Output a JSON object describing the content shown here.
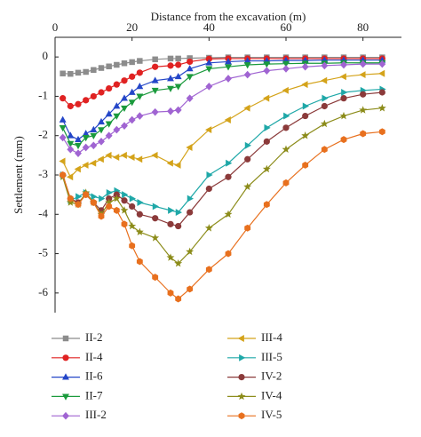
{
  "chart_data": {
    "type": "line",
    "x_label": "Distance from the excavation (m)",
    "y_label": "Settlement (mm)",
    "x": [
      2,
      4,
      6,
      8,
      10,
      12,
      14,
      16,
      18,
      20,
      22,
      26,
      30,
      32,
      35,
      40,
      45,
      50,
      55,
      60,
      65,
      70,
      75,
      80,
      85
    ],
    "xlim": [
      0,
      90
    ],
    "xticks": [
      0,
      20,
      40,
      60,
      80
    ],
    "ylim": [
      -6.5,
      0.5
    ],
    "yticks": [
      0,
      -1,
      -2,
      -3,
      -4,
      -5,
      -6
    ],
    "series": [
      {
        "name": "II-2",
        "color": "#8c8c8c",
        "marker": "square",
        "values": [
          -0.42,
          -0.43,
          -0.4,
          -0.38,
          -0.33,
          -0.28,
          -0.24,
          -0.2,
          -0.16,
          -0.13,
          -0.1,
          -0.06,
          -0.04,
          -0.04,
          -0.03,
          -0.02,
          -0.01,
          -0.01,
          -0.01,
          -0.01,
          -0.01,
          -0.01,
          -0.01,
          -0.01,
          -0.01
        ]
      },
      {
        "name": "II-4",
        "color": "#e02222",
        "marker": "circle",
        "values": [
          -1.05,
          -1.25,
          -1.2,
          -1.1,
          -1.0,
          -0.9,
          -0.8,
          -0.7,
          -0.6,
          -0.5,
          -0.4,
          -0.25,
          -0.22,
          -0.2,
          -0.12,
          -0.05,
          -0.04,
          -0.04,
          -0.04,
          -0.04,
          -0.04,
          -0.04,
          -0.04,
          -0.04,
          -0.04
        ]
      },
      {
        "name": "II-6",
        "color": "#2446c8",
        "marker": "triangle-up",
        "values": [
          -1.6,
          -2.0,
          -2.1,
          -1.95,
          -1.85,
          -1.65,
          -1.45,
          -1.25,
          -1.05,
          -0.9,
          -0.75,
          -0.6,
          -0.55,
          -0.5,
          -0.3,
          -0.15,
          -0.12,
          -0.1,
          -0.1,
          -0.09,
          -0.09,
          -0.08,
          -0.08,
          -0.08,
          -0.08
        ]
      },
      {
        "name": "II-7",
        "color": "#1a9a3c",
        "marker": "triangle-down",
        "values": [
          -1.8,
          -2.2,
          -2.25,
          -2.05,
          -2.0,
          -1.85,
          -1.7,
          -1.5,
          -1.3,
          -1.15,
          -1.0,
          -0.85,
          -0.8,
          -0.75,
          -0.5,
          -0.3,
          -0.25,
          -0.2,
          -0.18,
          -0.17,
          -0.16,
          -0.16,
          -0.15,
          -0.15,
          -0.15
        ]
      },
      {
        "name": "III-2",
        "color": "#a064d2",
        "marker": "diamond",
        "values": [
          -2.05,
          -2.35,
          -2.45,
          -2.3,
          -2.25,
          -2.15,
          -2.0,
          -1.85,
          -1.75,
          -1.6,
          -1.5,
          -1.4,
          -1.38,
          -1.35,
          -1.05,
          -0.75,
          -0.55,
          -0.45,
          -0.35,
          -0.3,
          -0.25,
          -0.22,
          -0.2,
          -0.18,
          -0.18
        ]
      },
      {
        "name": "III-4",
        "color": "#d4a31a",
        "marker": "triangle-left",
        "values": [
          -2.65,
          -3.05,
          -2.85,
          -2.75,
          -2.7,
          -2.6,
          -2.5,
          -2.55,
          -2.5,
          -2.55,
          -2.6,
          -2.5,
          -2.7,
          -2.75,
          -2.3,
          -1.85,
          -1.6,
          -1.3,
          -1.05,
          -0.85,
          -0.7,
          -0.6,
          -0.5,
          -0.45,
          -0.42
        ]
      },
      {
        "name": "III-5",
        "color": "#1fa8a8",
        "marker": "triangle-right",
        "values": [
          -3.0,
          -3.65,
          -3.55,
          -3.45,
          -3.55,
          -3.6,
          -3.45,
          -3.4,
          -3.5,
          -3.6,
          -3.7,
          -3.8,
          -3.9,
          -3.95,
          -3.6,
          -3.0,
          -2.7,
          -2.25,
          -1.8,
          -1.5,
          -1.25,
          -1.05,
          -0.9,
          -0.85,
          -0.82
        ]
      },
      {
        "name": "IV-2",
        "color": "#8b3a3a",
        "marker": "circle",
        "values": [
          -3.0,
          -3.6,
          -3.7,
          -3.5,
          -3.7,
          -3.9,
          -3.6,
          -3.5,
          -3.65,
          -3.8,
          -4.0,
          -4.1,
          -4.25,
          -4.3,
          -3.95,
          -3.35,
          -3.05,
          -2.6,
          -2.15,
          -1.8,
          -1.5,
          -1.25,
          -1.05,
          -0.95,
          -0.9
        ]
      },
      {
        "name": "IV-4",
        "color": "#8c8c1a",
        "marker": "star",
        "values": [
          -3.05,
          -3.7,
          -3.75,
          -3.45,
          -3.7,
          -4.0,
          -3.7,
          -3.6,
          -3.9,
          -4.3,
          -4.45,
          -4.6,
          -5.1,
          -5.25,
          -4.95,
          -4.35,
          -4.0,
          -3.3,
          -2.85,
          -2.35,
          -2.0,
          -1.7,
          -1.5,
          -1.35,
          -1.3
        ]
      },
      {
        "name": "IV-5",
        "color": "#e8701e",
        "marker": "hexagon",
        "values": [
          -3.0,
          -3.6,
          -3.75,
          -3.5,
          -3.7,
          -4.05,
          -3.8,
          -3.9,
          -4.25,
          -4.8,
          -5.2,
          -5.6,
          -6.0,
          -6.15,
          -5.9,
          -5.4,
          -5.0,
          -4.35,
          -3.75,
          -3.2,
          -2.75,
          -2.35,
          -2.1,
          -1.95,
          -1.9
        ]
      }
    ]
  }
}
